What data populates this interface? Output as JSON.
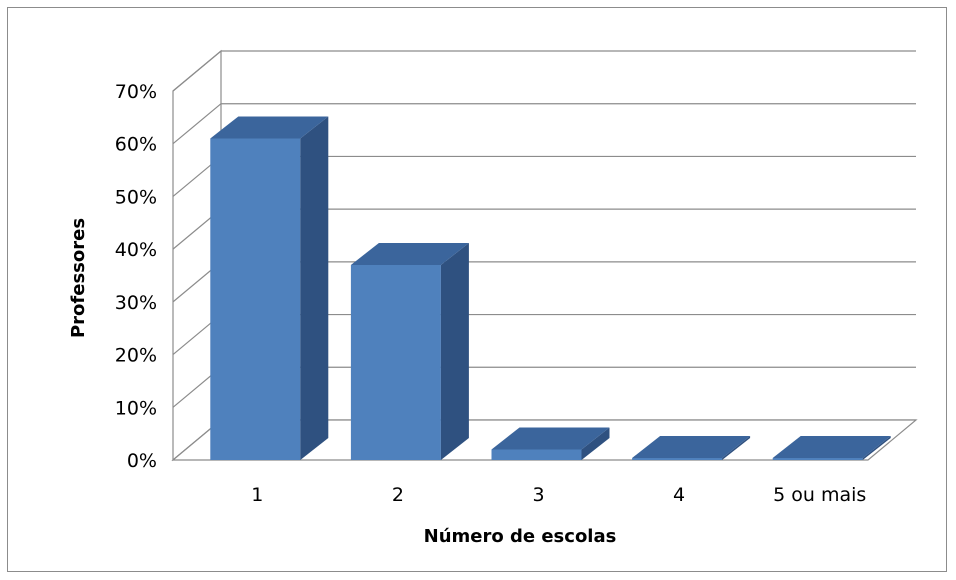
{
  "chart_data": {
    "type": "bar",
    "title": "",
    "xlabel": "Número de escolas",
    "ylabel": "Professores",
    "categories": [
      "1",
      "2",
      "3",
      "4",
      "5 ou mais"
    ],
    "values": [
      61,
      37,
      2,
      0,
      0
    ],
    "ylim": [
      0,
      70
    ],
    "yticks": [
      "0%",
      "10%",
      "20%",
      "30%",
      "40%",
      "50%",
      "60%",
      "70%"
    ],
    "yticks_values": [
      0,
      10,
      20,
      30,
      40,
      50,
      60,
      70
    ],
    "grid": true,
    "legend": "none",
    "three_d": true,
    "colors": {
      "bar_front": "#4f81bd",
      "bar_side": "#2f5180",
      "bar_top": "#3b659c",
      "gridline": "#8c8c8c",
      "floor": "#ffffff"
    }
  }
}
